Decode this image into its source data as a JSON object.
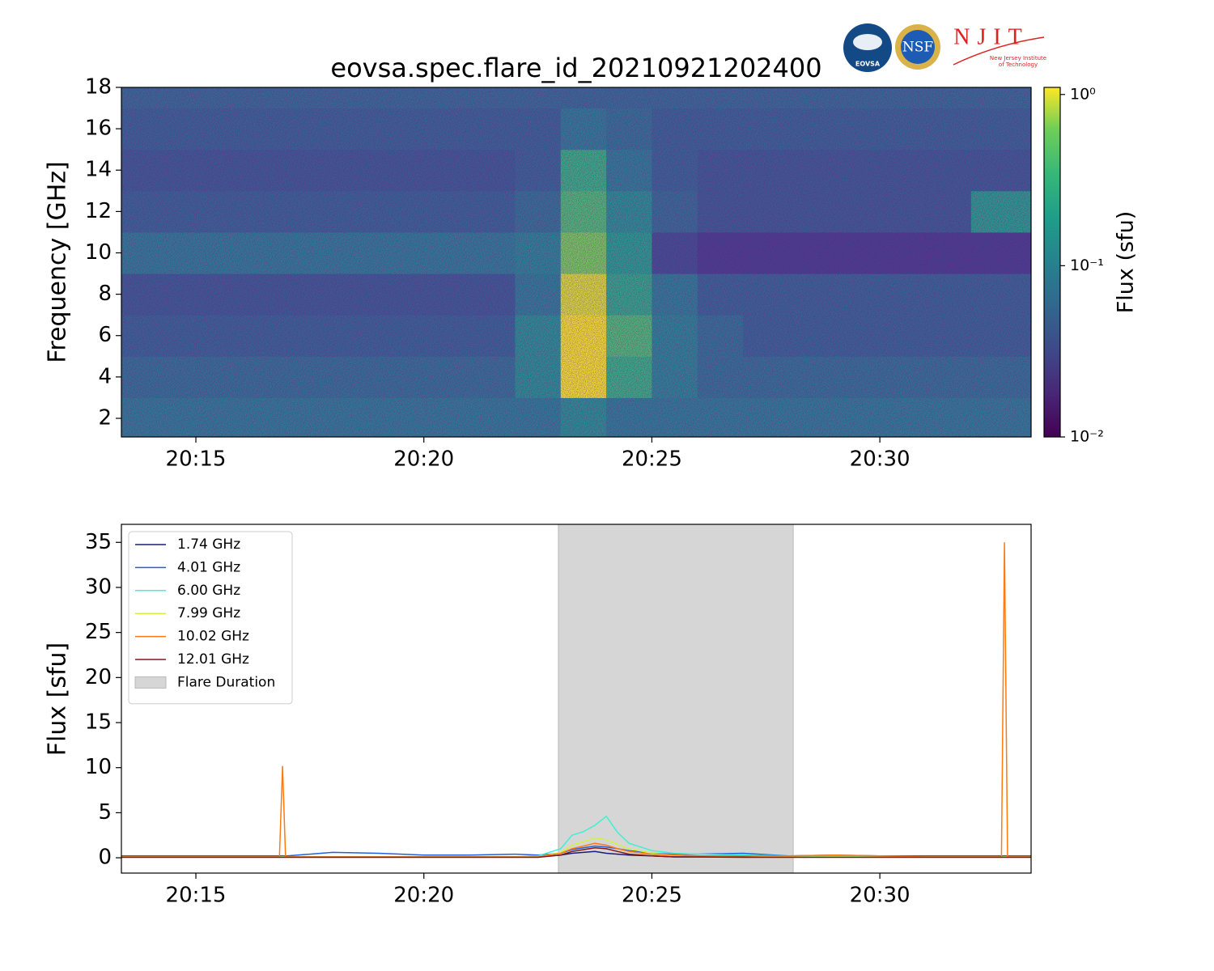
{
  "logos": {
    "eovsa": "EOVSA",
    "nsf": "NSF",
    "njit": "NJIT",
    "njit_name": [
      "New Jersey Institute",
      "of Technology"
    ]
  },
  "chart_data": [
    {
      "type": "heatmap",
      "title": "eovsa.spec.flare_id_20210921202400",
      "y_label": "Frequency [GHz]",
      "colorbar_label": "Flux  (sfu)",
      "colormap": "viridis",
      "log_color": true,
      "clim": [
        0.01,
        1.1
      ],
      "cticks": [
        {
          "value": 1,
          "label": "10⁰"
        },
        {
          "value": 0.1,
          "label": "10⁻¹"
        },
        {
          "value": 0.01,
          "label": "10⁻²"
        }
      ],
      "xlim": [
        "20:13:22",
        "20:33:19"
      ],
      "xticks": [
        "20:15",
        "20:20",
        "20:25",
        "20:30"
      ],
      "ylim": [
        1.1,
        18
      ],
      "yticks": [
        2,
        4,
        6,
        8,
        10,
        12,
        14,
        16,
        18
      ],
      "x_edges": [
        "20:13:22",
        "20:14",
        "20:15",
        "20:16",
        "20:17",
        "20:18",
        "20:19",
        "20:20",
        "20:21",
        "20:22",
        "20:23",
        "20:24",
        "20:25",
        "20:26",
        "20:27",
        "20:28",
        "20:29",
        "20:30",
        "20:31",
        "20:32",
        "20:33",
        "20:33:19"
      ],
      "y_edges": [
        1.1,
        3,
        5,
        7,
        9,
        11,
        13,
        15,
        17,
        18
      ],
      "z": [
        [
          0.1,
          0.1,
          0.1,
          0.1,
          0.1,
          0.1,
          0.1,
          0.1,
          0.1,
          0.1,
          0.15,
          0.1,
          0.1,
          0.1,
          0.1,
          0.1,
          0.1,
          0.1,
          0.1,
          0.1,
          0.1
        ],
        [
          0.08,
          0.08,
          0.08,
          0.08,
          0.08,
          0.08,
          0.08,
          0.08,
          0.08,
          0.15,
          1.0,
          0.3,
          0.12,
          0.08,
          0.08,
          0.08,
          0.08,
          0.08,
          0.08,
          0.08,
          0.08
        ],
        [
          0.06,
          0.06,
          0.06,
          0.06,
          0.06,
          0.06,
          0.06,
          0.06,
          0.06,
          0.15,
          1.0,
          0.4,
          0.12,
          0.08,
          0.06,
          0.06,
          0.06,
          0.06,
          0.06,
          0.06,
          0.06
        ],
        [
          0.05,
          0.05,
          0.05,
          0.05,
          0.05,
          0.05,
          0.05,
          0.05,
          0.05,
          0.1,
          0.9,
          0.25,
          0.1,
          0.06,
          0.06,
          0.06,
          0.06,
          0.06,
          0.06,
          0.06,
          0.06
        ],
        [
          0.1,
          0.1,
          0.1,
          0.1,
          0.1,
          0.1,
          0.1,
          0.1,
          0.1,
          0.12,
          0.6,
          0.2,
          0.04,
          0.03,
          0.03,
          0.03,
          0.03,
          0.03,
          0.03,
          0.03,
          0.03
        ],
        [
          0.06,
          0.06,
          0.06,
          0.06,
          0.06,
          0.06,
          0.06,
          0.06,
          0.06,
          0.08,
          0.4,
          0.15,
          0.07,
          0.05,
          0.05,
          0.05,
          0.05,
          0.05,
          0.05,
          0.2,
          0.2
        ],
        [
          0.05,
          0.05,
          0.05,
          0.05,
          0.05,
          0.05,
          0.05,
          0.05,
          0.05,
          0.06,
          0.3,
          0.1,
          0.06,
          0.05,
          0.05,
          0.05,
          0.05,
          0.05,
          0.05,
          0.05,
          0.05
        ],
        [
          0.06,
          0.06,
          0.06,
          0.06,
          0.06,
          0.06,
          0.06,
          0.06,
          0.06,
          0.06,
          0.1,
          0.08,
          0.06,
          0.06,
          0.06,
          0.06,
          0.06,
          0.06,
          0.06,
          0.06,
          0.06
        ],
        [
          0.07,
          0.07,
          0.07,
          0.07,
          0.07,
          0.07,
          0.07,
          0.07,
          0.07,
          0.07,
          0.07,
          0.07,
          0.07,
          0.07,
          0.07,
          0.07,
          0.07,
          0.07,
          0.07,
          0.07,
          0.07
        ]
      ]
    },
    {
      "type": "line",
      "y_label": "Flux [sfu]",
      "xlim": [
        "20:13:22",
        "20:33:19"
      ],
      "xticks": [
        "20:15",
        "20:20",
        "20:25",
        "20:30"
      ],
      "ylim": [
        -1.7,
        37
      ],
      "yticks": [
        0,
        5,
        10,
        15,
        20,
        25,
        30,
        35
      ],
      "legend": "upper left",
      "span": {
        "start": "20:22:57",
        "end": "20:28:06",
        "label": "Flare Duration",
        "color": "#d6d6d6"
      },
      "x": [
        "20:13:22",
        "20:14",
        "20:15",
        "20:16",
        "20:16:50",
        "20:16:54",
        "20:16:58",
        "20:17",
        "20:18",
        "20:19",
        "20:20",
        "20:21",
        "20:22",
        "20:22:30",
        "20:23",
        "20:23:15",
        "20:23:30",
        "20:23:45",
        "20:24",
        "20:24:15",
        "20:24:30",
        "20:25",
        "20:25:30",
        "20:26",
        "20:27",
        "20:28",
        "20:29",
        "20:30",
        "20:31",
        "20:32",
        "20:32:40",
        "20:32:44",
        "20:32:48",
        "20:33",
        "20:33:19"
      ],
      "series": [
        {
          "name": "1.74 GHz",
          "color": "#1b1b78",
          "values": [
            0.1,
            0.1,
            0.1,
            0.1,
            0.1,
            0.1,
            0.1,
            0.1,
            0.1,
            0.1,
            0.1,
            0.1,
            0.1,
            0.1,
            0.3,
            0.5,
            0.6,
            0.7,
            0.5,
            0.4,
            0.3,
            0.2,
            0.1,
            0.1,
            0.1,
            0.1,
            0.1,
            0.1,
            0.1,
            0.1,
            0.1,
            0.1,
            0.1,
            0.1,
            0.1
          ]
        },
        {
          "name": "4.01 GHz",
          "color": "#2060e0",
          "values": [
            0.2,
            0.2,
            0.2,
            0.2,
            0.2,
            0.2,
            0.2,
            0.2,
            0.6,
            0.5,
            0.3,
            0.3,
            0.4,
            0.3,
            0.5,
            0.9,
            1.1,
            1.3,
            1.2,
            1.0,
            0.8,
            0.5,
            0.4,
            0.4,
            0.5,
            0.2,
            0.3,
            0.2,
            0.2,
            0.2,
            0.2,
            0.2,
            0.2,
            0.2,
            0.2
          ]
        },
        {
          "name": "6.00 GHz",
          "color": "#40f0d0",
          "values": [
            0.1,
            0.1,
            0.1,
            0.1,
            0.1,
            0.1,
            0.1,
            0.1,
            0.1,
            0.1,
            0.1,
            0.1,
            0.1,
            0.2,
            1.0,
            2.5,
            2.9,
            3.6,
            4.6,
            2.8,
            1.6,
            0.8,
            0.5,
            0.4,
            0.3,
            0.2,
            0.2,
            0.1,
            0.1,
            0.1,
            0.1,
            0.1,
            0.1,
            0.1,
            0.1
          ]
        },
        {
          "name": "7.99 GHz",
          "color": "#d4f040",
          "values": [
            0.1,
            0.1,
            0.1,
            0.1,
            0.1,
            0.1,
            0.1,
            0.1,
            0.1,
            0.1,
            0.1,
            0.1,
            0.1,
            0.1,
            0.6,
            1.4,
            1.8,
            2.2,
            2.0,
            1.5,
            1.0,
            0.5,
            0.3,
            0.2,
            0.2,
            0.1,
            0.1,
            0.1,
            0.1,
            0.1,
            0.1,
            0.1,
            0.1,
            0.1,
            0.1
          ]
        },
        {
          "name": "10.02 GHz",
          "color": "#ff7a10",
          "values": [
            0.1,
            0.1,
            0.1,
            0.1,
            0.1,
            10.2,
            0.1,
            0.1,
            0.1,
            0.1,
            0.1,
            0.1,
            0.1,
            0.1,
            0.5,
            1.0,
            1.3,
            1.6,
            1.4,
            1.0,
            0.7,
            0.4,
            0.3,
            0.2,
            0.2,
            0.2,
            0.3,
            0.2,
            0.1,
            0.1,
            0.1,
            35.0,
            0.1,
            0.1,
            0.1
          ]
        },
        {
          "name": "12.01 GHz",
          "color": "#801818",
          "values": [
            0.05,
            0.05,
            0.05,
            0.05,
            0.05,
            0.05,
            0.05,
            0.05,
            0.05,
            0.05,
            0.05,
            0.05,
            0.05,
            0.05,
            0.3,
            0.7,
            0.9,
            1.1,
            1.0,
            0.7,
            0.4,
            0.2,
            0.1,
            0.1,
            0.05,
            0.05,
            0.05,
            0.05,
            0.05,
            0.05,
            0.05,
            0.05,
            0.05,
            0.05,
            0.05
          ]
        }
      ]
    }
  ]
}
